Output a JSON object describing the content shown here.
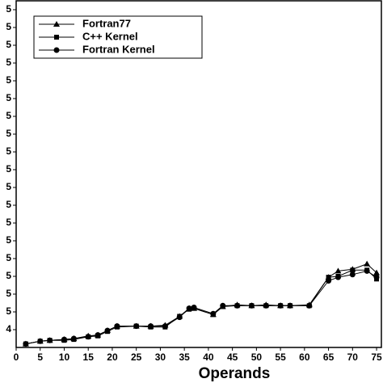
{
  "chart_data": {
    "type": "line",
    "xlabel": "Operands",
    "x": [
      2,
      5,
      7,
      10,
      12,
      15,
      17,
      19,
      21,
      25,
      28,
      31,
      34,
      36,
      37,
      41,
      43,
      46,
      49,
      52,
      55,
      57,
      61,
      65,
      67,
      70,
      73,
      75
    ],
    "series": [
      {
        "name": "Fortran77",
        "color": "#000000",
        "marker": "triangle",
        "values": [
          0.2,
          0.35,
          0.4,
          0.45,
          0.5,
          0.65,
          0.7,
          0.95,
          1.2,
          1.2,
          1.2,
          1.25,
          1.75,
          2.2,
          2.2,
          1.85,
          2.3,
          2.4,
          2.35,
          2.4,
          2.35,
          2.35,
          2.4,
          3.95,
          4.3,
          4.4,
          4.7,
          4.2
        ]
      },
      {
        "name": "C++ Kernel",
        "color": "#000000",
        "marker": "square",
        "values": [
          0.2,
          0.35,
          0.4,
          0.4,
          0.45,
          0.6,
          0.65,
          0.9,
          1.15,
          1.2,
          1.15,
          1.15,
          1.75,
          2.15,
          2.2,
          1.85,
          2.3,
          2.35,
          2.35,
          2.35,
          2.35,
          2.35,
          2.35,
          3.95,
          4.0,
          4.35,
          4.35,
          3.85
        ]
      },
      {
        "name": "Fortran Kernel",
        "color": "#000000",
        "marker": "circle",
        "values": [
          0.2,
          0.35,
          0.4,
          0.45,
          0.5,
          0.6,
          0.7,
          0.95,
          1.2,
          1.2,
          1.2,
          1.2,
          1.7,
          2.2,
          2.25,
          1.9,
          2.35,
          2.35,
          2.35,
          2.35,
          2.35,
          2.35,
          2.35,
          3.75,
          3.95,
          4.1,
          4.3,
          3.95
        ]
      }
    ],
    "xlim": [
      0,
      76
    ],
    "xticks": [
      0,
      5,
      10,
      15,
      20,
      25,
      30,
      35,
      40,
      45,
      50,
      55,
      60,
      65,
      70,
      75
    ],
    "ylim": [
      0,
      19.5
    ],
    "yticks": [
      {
        "value": 1,
        "label": "4"
      },
      {
        "value": 2,
        "label": "5"
      },
      {
        "value": 3,
        "label": "5"
      },
      {
        "value": 4,
        "label": "5"
      },
      {
        "value": 5,
        "label": "5"
      },
      {
        "value": 6,
        "label": "5"
      },
      {
        "value": 7,
        "label": "5"
      },
      {
        "value": 8,
        "label": "5"
      },
      {
        "value": 9,
        "label": "5"
      },
      {
        "value": 10,
        "label": "5"
      },
      {
        "value": 11,
        "label": "5"
      },
      {
        "value": 12,
        "label": "5"
      },
      {
        "value": 13,
        "label": "5"
      },
      {
        "value": 14,
        "label": "5"
      },
      {
        "value": 15,
        "label": "5"
      },
      {
        "value": 16,
        "label": "5"
      },
      {
        "value": 17,
        "label": "5"
      },
      {
        "value": 18,
        "label": "5"
      },
      {
        "value": 19,
        "label": "5"
      }
    ],
    "legend": "upper left"
  }
}
